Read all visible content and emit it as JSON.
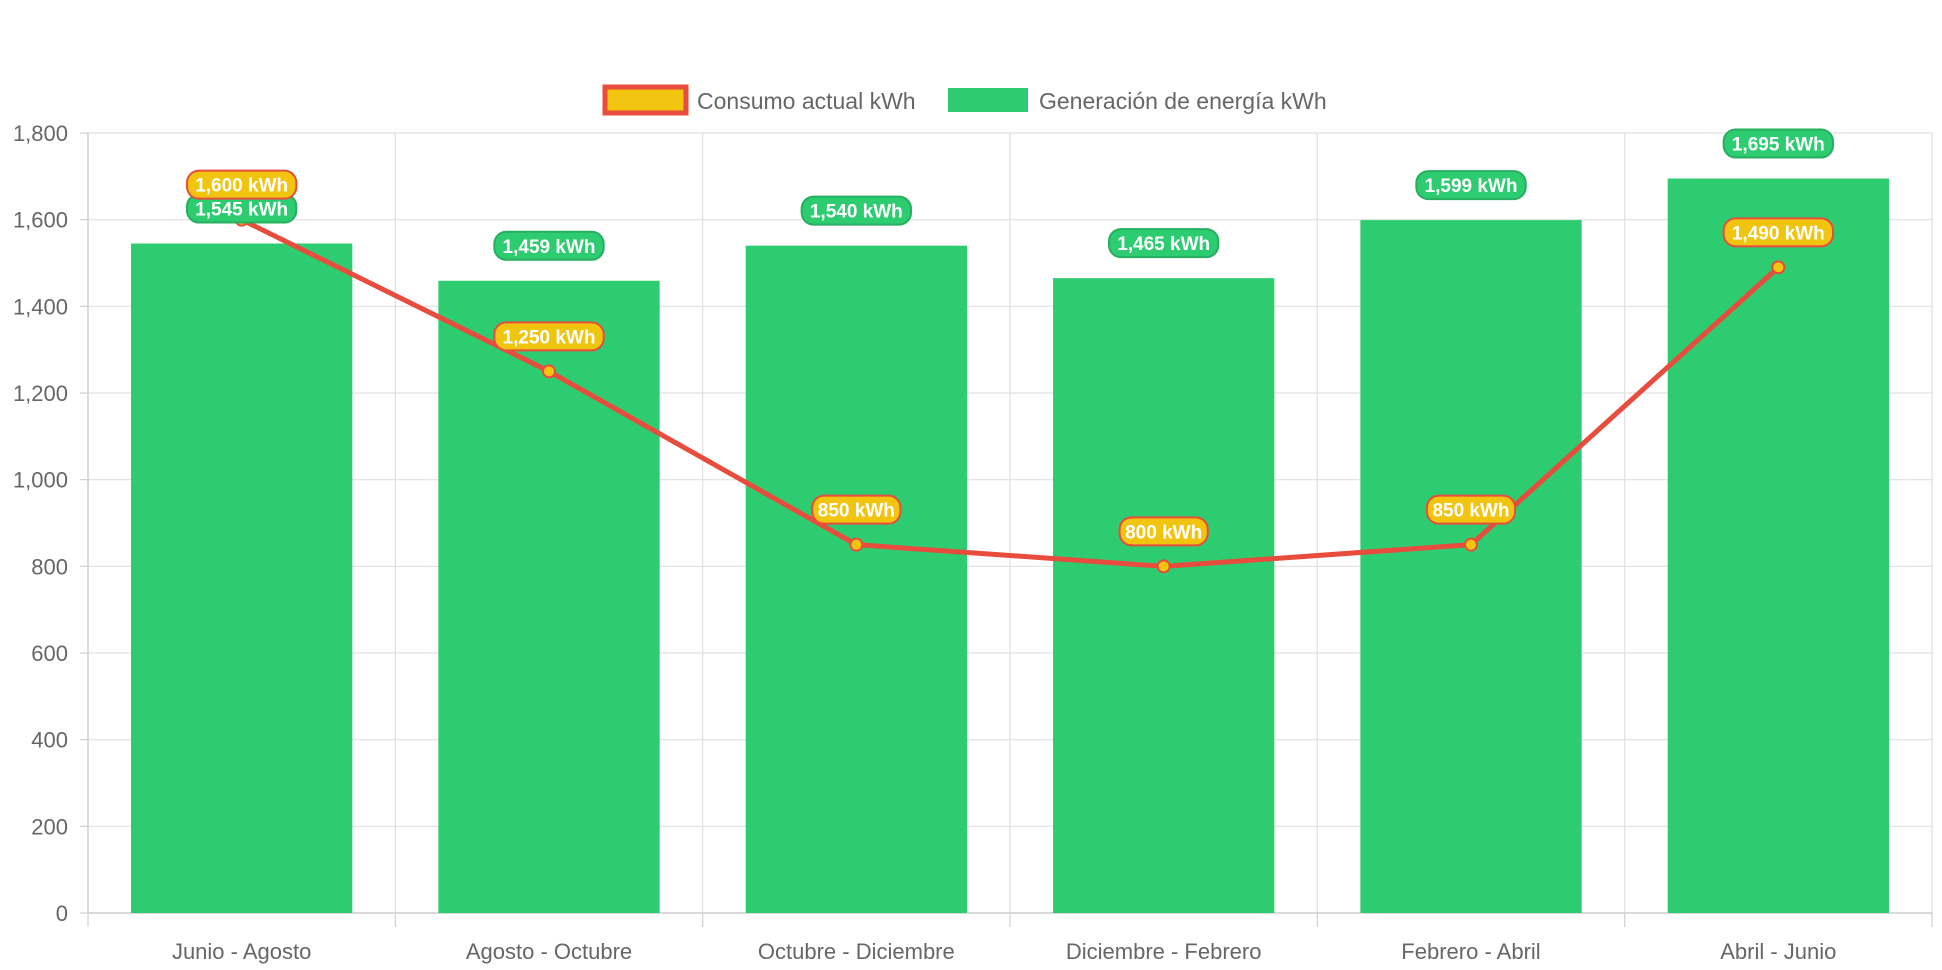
{
  "chart_data": {
    "type": "bar",
    "title": "",
    "xlabel": "",
    "ylabel": "",
    "categories": [
      "Junio - Agosto",
      "Agosto - Octubre",
      "Octubre - Diciembre",
      "Diciembre - Febrero",
      "Febrero - Abril",
      "Abril - Junio"
    ],
    "ylim": [
      0,
      1800
    ],
    "yticks": [
      0,
      200,
      400,
      600,
      800,
      1000,
      1200,
      1400,
      1600,
      1800
    ],
    "ytick_labels": [
      "0",
      "200",
      "400",
      "600",
      "800",
      "1,000",
      "1,200",
      "1,400",
      "1,600",
      "1,800"
    ],
    "grid": true,
    "legend_position": "top-center",
    "series": [
      {
        "name": "Consumo actual kWh",
        "type": "line",
        "values": [
          1600,
          1250,
          850,
          800,
          850,
          1490
        ],
        "labels": [
          "1,600 kWh",
          "1,250 kWh",
          "850 kWh",
          "800 kWh",
          "850 kWh",
          "1,490 kWh"
        ],
        "color": "#e74c3c",
        "fill": "#f1c40f"
      },
      {
        "name": "Generación de energía kWh",
        "type": "bar",
        "values": [
          1545,
          1459,
          1540,
          1465,
          1599,
          1695
        ],
        "labels": [
          "1,545 kWh",
          "1,459 kWh",
          "1,540 kWh",
          "1,465 kWh",
          "1,599 kWh",
          "1,695 kWh"
        ],
        "color": "#2ecc71",
        "border": "#27ae60"
      }
    ]
  }
}
